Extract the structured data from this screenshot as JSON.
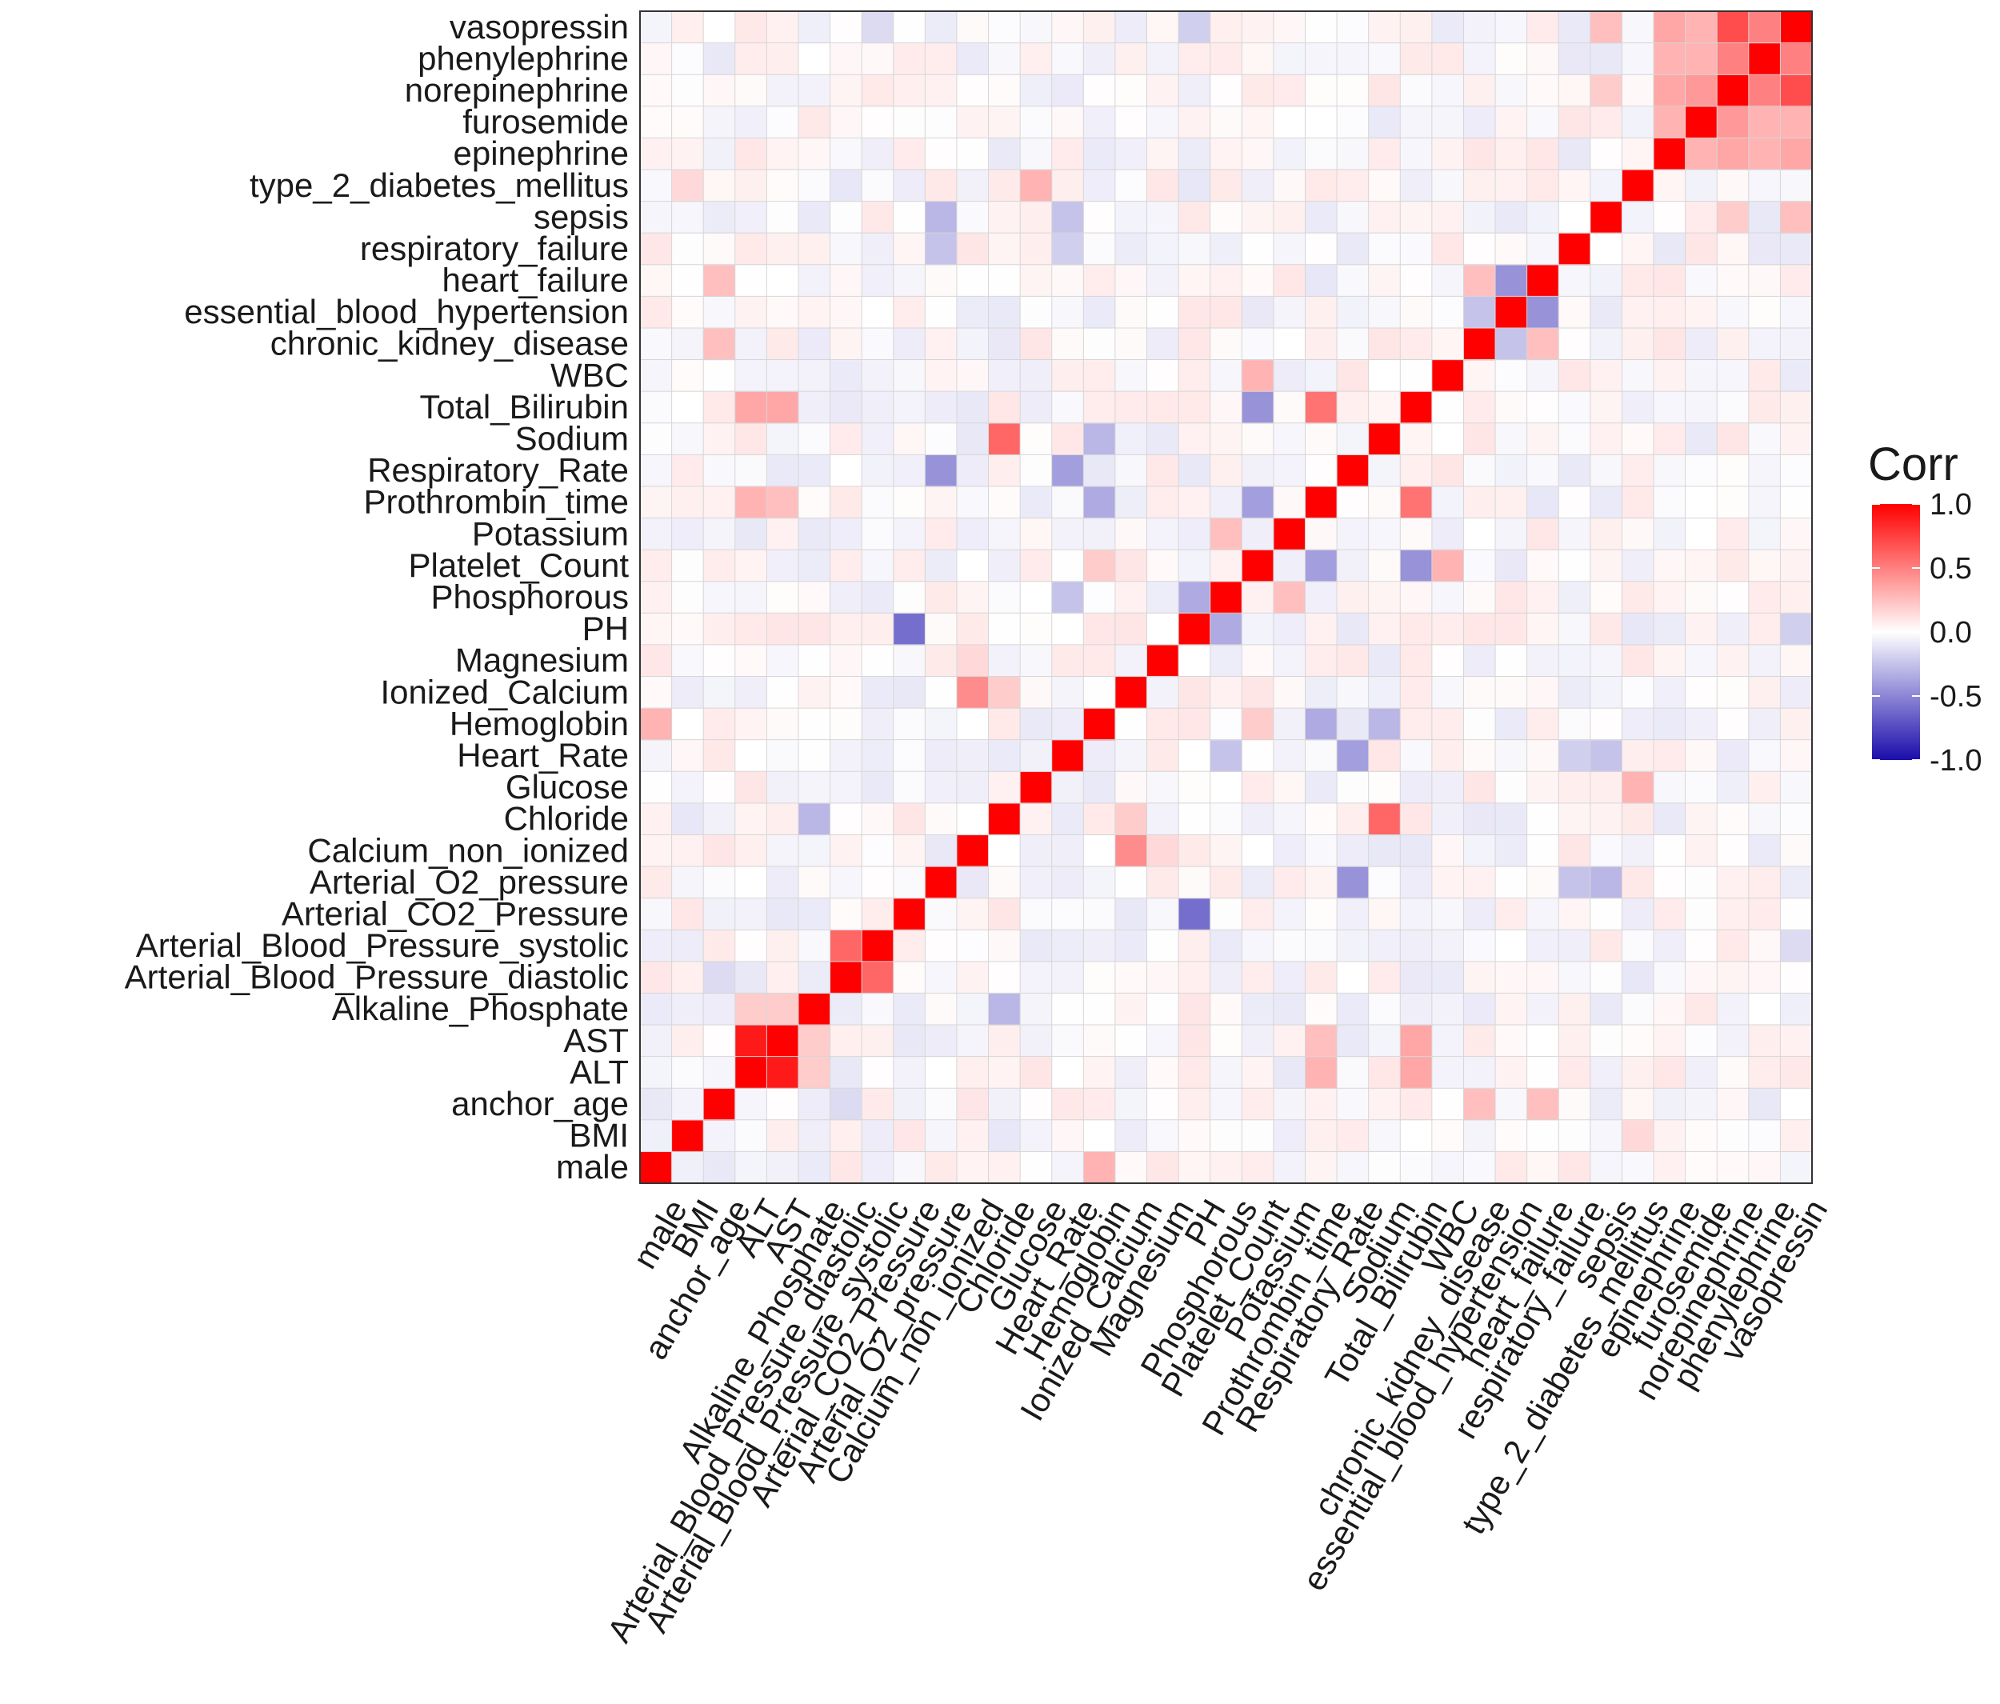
{
  "chart_data": {
    "type": "heatmap",
    "title": "",
    "xlabel": "",
    "ylabel": "",
    "variables": [
      "male",
      "BMI",
      "anchor_age",
      "ALT",
      "AST",
      "Alkaline_Phosphate",
      "Arterial_Blood_Pressure_diastolic",
      "Arterial_Blood_Pressure_systolic",
      "Arterial_CO2_Pressure",
      "Arterial_O2_pressure",
      "Calcium_non_ionized",
      "Chloride",
      "Glucose",
      "Heart_Rate",
      "Hemoglobin",
      "Ionized_Calcium",
      "Magnesium",
      "PH",
      "Phosphorous",
      "Platelet_Count",
      "Potassium",
      "Prothrombin_time",
      "Respiratory_Rate",
      "Sodium",
      "Total_Bilirubin",
      "WBC",
      "chronic_kidney_disease",
      "essential_blood_hypertension",
      "heart_failure",
      "respiratory_failure",
      "sepsis",
      "type_2_diabetes_mellitus",
      "epinephrine",
      "furosemide",
      "norepinephrine",
      "phenylephrine",
      "vasopressin"
    ],
    "x_tick_labels": [
      "male",
      "BMI",
      "anchor_age",
      "ALT",
      "AST",
      "Alkaline_Phosphate",
      "Arterial_Blood_Pressure_diastolic",
      "Arterial_Blood_Pressure_systolic",
      "Arterial_CO2_Pressure",
      "Arterial_O2_pressure",
      "Calcium_non_ionized",
      "Chloride",
      "Glucose",
      "Heart_Rate",
      "Hemoglobin",
      "Ionized_Calcium",
      "Magnesium",
      "PH",
      "Phosphorous",
      "Platelet_Count",
      "Potassium",
      "Prothrombin_time",
      "Respiratory_Rate",
      "Sodium",
      "Total_Bilirubin",
      "WBC",
      "chronic_kidney_disease",
      "essential_blood_hypertension",
      "heart_failure",
      "respiratory_failure",
      "sepsis",
      "type_2_diabetes_mellitus",
      "epinephrine",
      "furosemide",
      "norepinephrine",
      "phenylephrine",
      "vasopressin"
    ],
    "y_tick_labels_bottom_to_top": [
      "male",
      "BMI",
      "anchor_age",
      "ALT",
      "AST",
      "Alkaline_Phosphate",
      "Arterial_Blood_Pressure_diastolic",
      "Arterial_Blood_Pressure_systolic",
      "Arterial_CO2_Pressure",
      "Arterial_O2_pressure",
      "Calcium_non_ionized",
      "Chloride",
      "Glucose",
      "Heart_Rate",
      "Hemoglobin",
      "Ionized_Calcium",
      "Magnesium",
      "PH",
      "Phosphorous",
      "Platelet_Count",
      "Potassium",
      "Prothrombin_time",
      "Respiratory_Rate",
      "Sodium",
      "Total_Bilirubin",
      "WBC",
      "chronic_kidney_disease",
      "essential_blood_hypertension",
      "heart_failure",
      "respiratory_failure",
      "sepsis",
      "type_2_diabetes_mellitus",
      "epinephrine",
      "furosemide",
      "norepinephrine",
      "phenylephrine",
      "vasopressin"
    ],
    "correlations": [
      {
        "a": "ALT",
        "b": "AST",
        "r": 0.9
      },
      {
        "a": "Arterial_Blood_Pressure_diastolic",
        "b": "Arterial_Blood_Pressure_systolic",
        "r": 0.6
      },
      {
        "a": "Chloride",
        "b": "Sodium",
        "r": 0.6
      },
      {
        "a": "Prothrombin_time",
        "b": "Total_Bilirubin",
        "r": 0.55
      },
      {
        "a": "Calcium_non_ionized",
        "b": "Ionized_Calcium",
        "r": 0.45
      },
      {
        "a": "Platelet_Count",
        "b": "WBC",
        "r": 0.3
      },
      {
        "a": "ALT",
        "b": "Total_Bilirubin",
        "r": 0.35
      },
      {
        "a": "AST",
        "b": "Total_Bilirubin",
        "r": 0.35
      },
      {
        "a": "ALT",
        "b": "Alkaline_Phosphate",
        "r": 0.2
      },
      {
        "a": "AST",
        "b": "Alkaline_Phosphate",
        "r": 0.2
      },
      {
        "a": "ALT",
        "b": "Prothrombin_time",
        "r": 0.3
      },
      {
        "a": "AST",
        "b": "Prothrombin_time",
        "r": 0.25
      },
      {
        "a": "Hemoglobin",
        "b": "male",
        "r": 0.3
      },
      {
        "a": "Hemoglobin",
        "b": "Platelet_Count",
        "r": 0.2
      },
      {
        "a": "norepinephrine",
        "b": "vasopressin",
        "r": 0.7
      },
      {
        "a": "epinephrine",
        "b": "norepinephrine",
        "r": 0.35
      },
      {
        "a": "epinephrine",
        "b": "vasopressin",
        "r": 0.35
      },
      {
        "a": "furosemide",
        "b": "norepinephrine",
        "r": 0.4
      },
      {
        "a": "furosemide",
        "b": "phenylephrine",
        "r": 0.3
      },
      {
        "a": "furosemide",
        "b": "vasopressin",
        "r": 0.3
      },
      {
        "a": "norepinephrine",
        "b": "phenylephrine",
        "r": 0.5
      },
      {
        "a": "phenylephrine",
        "b": "vasopressin",
        "r": 0.5
      },
      {
        "a": "epinephrine",
        "b": "furosemide",
        "r": 0.3
      },
      {
        "a": "epinephrine",
        "b": "phenylephrine",
        "r": 0.3
      },
      {
        "a": "Arterial_CO2_Pressure",
        "b": "PH",
        "r": -0.6
      },
      {
        "a": "essential_blood_hypertension",
        "b": "heart_failure",
        "r": -0.45
      },
      {
        "a": "Platelet_Count",
        "b": "Total_Bilirubin",
        "r": -0.45
      },
      {
        "a": "Platelet_Count",
        "b": "Prothrombin_time",
        "r": -0.4
      },
      {
        "a": "Arterial_O2_pressure",
        "b": "Respiratory_Rate",
        "r": -0.45
      },
      {
        "a": "Heart_Rate",
        "b": "Respiratory_Rate",
        "r": -0.4
      },
      {
        "a": "PH",
        "b": "Phosphorous",
        "r": -0.35
      },
      {
        "a": "Hemoglobin",
        "b": "Prothrombin_time",
        "r": -0.35
      },
      {
        "a": "Hemoglobin",
        "b": "Sodium",
        "r": -0.3
      },
      {
        "a": "Alkaline_Phosphate",
        "b": "Chloride",
        "r": -0.3
      },
      {
        "a": "Arterial_O2_pressure",
        "b": "sepsis",
        "r": -0.3
      },
      {
        "a": "Arterial_O2_pressure",
        "b": "respiratory_failure",
        "r": -0.25
      },
      {
        "a": "Heart_Rate",
        "b": "sepsis",
        "r": -0.25
      },
      {
        "a": "Heart_Rate",
        "b": "respiratory_failure",
        "r": -0.2
      },
      {
        "a": "anchor_age",
        "b": "heart_failure",
        "r": 0.25
      },
      {
        "a": "anchor_age",
        "b": "chronic_kidney_disease",
        "r": 0.25
      },
      {
        "a": "chronic_kidney_disease",
        "b": "essential_blood_hypertension",
        "r": -0.25
      },
      {
        "a": "chronic_kidney_disease",
        "b": "heart_failure",
        "r": 0.25
      },
      {
        "a": "Heart_Rate",
        "b": "Phosphorous",
        "r": -0.25
      },
      {
        "a": "Phosphorous",
        "b": "Potassium",
        "r": 0.25
      },
      {
        "a": "Glucose",
        "b": "type_2_diabetes_mellitus",
        "r": 0.3
      },
      {
        "a": "Heart_Rate",
        "b": "sepsis",
        "r": -0.25
      },
      {
        "a": "sepsis",
        "b": "vasopressin",
        "r": 0.25
      },
      {
        "a": "norepinephrine",
        "b": "sepsis",
        "r": 0.2
      },
      {
        "a": "anchor_age",
        "b": "Arterial_Blood_Pressure_diastolic",
        "r": -0.15
      },
      {
        "a": "BMI",
        "b": "type_2_diabetes_mellitus",
        "r": 0.15
      },
      {
        "a": "BMI",
        "b": "anchor_age",
        "r": -0.05
      },
      {
        "a": "Calcium_non_ionized",
        "b": "Magnesium",
        "r": 0.15
      },
      {
        "a": "Chloride",
        "b": "Ionized_Calcium",
        "r": 0.2
      },
      {
        "a": "PH",
        "b": "vasopressin",
        "r": -0.2
      },
      {
        "a": "Arterial_Blood_Pressure_systolic",
        "b": "vasopressin",
        "r": -0.15
      }
    ],
    "color_scale": {
      "low": "#1a0dab",
      "mid": "#ffffff",
      "high": "#ff0000",
      "domain": [
        -1,
        1
      ]
    },
    "legend": {
      "title": "Corr",
      "ticks": [
        "1.0",
        "0.5",
        "0.0",
        "-0.5",
        "-1.0"
      ],
      "tick_values": [
        1.0,
        0.5,
        0.0,
        -0.5,
        -1.0
      ],
      "placement": "right"
    },
    "grid": true
  }
}
